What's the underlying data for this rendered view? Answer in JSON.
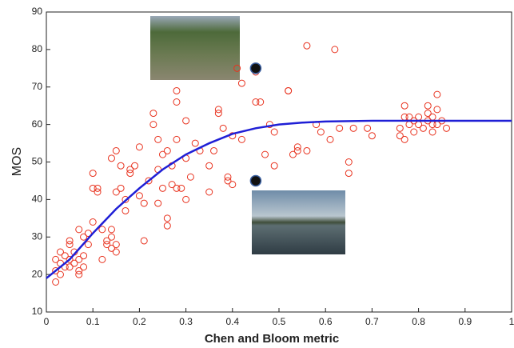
{
  "chart_data": {
    "type": "scatter",
    "xlabel": "Chen and Bloom metric",
    "ylabel": "MOS",
    "xlim": [
      0,
      1
    ],
    "ylim": [
      10,
      90
    ],
    "xticks": [
      0,
      0.1,
      0.2,
      0.3,
      0.4,
      0.5,
      0.6,
      0.7,
      0.8,
      0.9,
      1
    ],
    "yticks": [
      10,
      20,
      30,
      40,
      50,
      60,
      70,
      80,
      90
    ],
    "points": {
      "color": "#e8321e",
      "x": [
        0.02,
        0.02,
        0.02,
        0.03,
        0.03,
        0.03,
        0.04,
        0.04,
        0.05,
        0.05,
        0.05,
        0.05,
        0.06,
        0.06,
        0.07,
        0.07,
        0.07,
        0.07,
        0.08,
        0.08,
        0.08,
        0.09,
        0.09,
        0.1,
        0.1,
        0.1,
        0.11,
        0.11,
        0.12,
        0.12,
        0.13,
        0.13,
        0.14,
        0.14,
        0.14,
        0.14,
        0.15,
        0.15,
        0.15,
        0.15,
        0.16,
        0.16,
        0.17,
        0.17,
        0.18,
        0.18,
        0.19,
        0.2,
        0.2,
        0.21,
        0.21,
        0.22,
        0.23,
        0.23,
        0.24,
        0.24,
        0.24,
        0.25,
        0.25,
        0.26,
        0.26,
        0.26,
        0.27,
        0.27,
        0.28,
        0.28,
        0.28,
        0.28,
        0.29,
        0.3,
        0.3,
        0.3,
        0.31,
        0.32,
        0.33,
        0.35,
        0.35,
        0.36,
        0.37,
        0.37,
        0.38,
        0.39,
        0.39,
        0.4,
        0.4,
        0.41,
        0.42,
        0.42,
        0.45,
        0.45,
        0.46,
        0.47,
        0.48,
        0.49,
        0.49,
        0.52,
        0.52,
        0.53,
        0.54,
        0.54,
        0.56,
        0.56,
        0.58,
        0.59,
        0.61,
        0.62,
        0.63,
        0.65,
        0.65,
        0.66,
        0.69,
        0.7,
        0.76,
        0.76,
        0.77,
        0.77,
        0.77,
        0.78,
        0.78,
        0.79,
        0.79,
        0.8,
        0.8,
        0.81,
        0.82,
        0.82,
        0.82,
        0.83,
        0.83,
        0.83,
        0.84,
        0.84,
        0.84,
        0.85,
        0.86
      ],
      "y": [
        18,
        21,
        24,
        26,
        20,
        23,
        25,
        22,
        24,
        22,
        28,
        29,
        23,
        26,
        21,
        20,
        24,
        32,
        30,
        22,
        25,
        31,
        28,
        34,
        43,
        47,
        43,
        42,
        24,
        32,
        29,
        28,
        30,
        27,
        32,
        51,
        53,
        26,
        28,
        42,
        43,
        49,
        37,
        40,
        48,
        47,
        49,
        54,
        41,
        29,
        39,
        45,
        63,
        60,
        56,
        48,
        39,
        52,
        43,
        35,
        33,
        53,
        44,
        49,
        69,
        66,
        56,
        43,
        43,
        61,
        51,
        40,
        46,
        55,
        53,
        49,
        42,
        53,
        63,
        64,
        59,
        45,
        46,
        44,
        57,
        75,
        71,
        56,
        74,
        66,
        66,
        52,
        60,
        49,
        58,
        69,
        69,
        52,
        53,
        54,
        81,
        53,
        60,
        58,
        56,
        80,
        59,
        50,
        47,
        59,
        59,
        57,
        57,
        59,
        62,
        65,
        56,
        60,
        62,
        61,
        58,
        60,
        62,
        59,
        65,
        63,
        61,
        60,
        58,
        62,
        68,
        64,
        60,
        61,
        59
      ]
    },
    "fit": {
      "color": "#1f1fd6",
      "x": [
        0,
        0.05,
        0.1,
        0.15,
        0.2,
        0.25,
        0.3,
        0.35,
        0.4,
        0.45,
        0.5,
        0.55,
        0.6,
        0.7,
        0.8,
        0.9,
        1
      ],
      "y": [
        19,
        24,
        31,
        37.5,
        43,
        48,
        52,
        55,
        57.5,
        59,
        60,
        60.5,
        60.8,
        61,
        61,
        61,
        61
      ]
    },
    "highlights": {
      "color": "#111",
      "x": [
        0.45,
        0.45
      ],
      "y": [
        75,
        45
      ]
    }
  }
}
